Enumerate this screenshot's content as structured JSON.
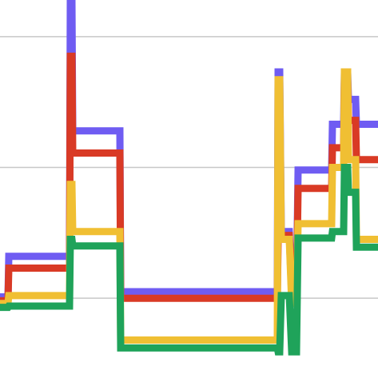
{
  "chart_data": {
    "type": "line",
    "x": [
      0,
      10,
      11,
      87,
      88,
      90,
      91,
      150,
      151,
      347,
      348,
      350,
      352,
      362,
      365,
      371,
      373,
      415,
      416,
      430,
      431,
      435,
      436,
      445,
      446,
      473
    ],
    "xlim": [
      0,
      473
    ],
    "ylim": [
      -0.61,
      2.28
    ],
    "yticks": [
      0,
      1,
      2
    ],
    "grid": true,
    "series": [
      {
        "color": "#6f5cf2",
        "values": [
          0.01,
          0.01,
          0.32,
          0.32,
          2.28,
          2.28,
          1.28,
          1.28,
          0.05,
          0.05,
          1.73,
          1.73,
          0.51,
          0.51,
          0.08,
          0.08,
          0.98,
          0.98,
          1.33,
          1.33,
          1.73,
          1.73,
          1.52,
          1.52,
          1.33,
          1.33
        ]
      },
      {
        "color": "#d93a25",
        "values": [
          -0.02,
          -0.02,
          0.23,
          0.23,
          1.85,
          1.85,
          1.11,
          1.11,
          0,
          0,
          0.45,
          0.45,
          0.48,
          0.48,
          0.02,
          0.02,
          0.84,
          0.84,
          1.15,
          1.15,
          1.67,
          1.67,
          1.36,
          1.36,
          1.06,
          1.06
        ]
      },
      {
        "color": "#f0bf33",
        "values": [
          -0.04,
          -0.04,
          0.02,
          0.02,
          0.87,
          0.87,
          0.51,
          0.51,
          -0.32,
          -0.32,
          1.67,
          1.67,
          0.45,
          0.45,
          -0.04,
          -0.04,
          0.57,
          0.57,
          1.0,
          1.0,
          1.73,
          1.73,
          1.06,
          1.06,
          0.45,
          0.45
        ]
      },
      {
        "color": "#1fa35a",
        "values": [
          -0.07,
          -0.07,
          -0.06,
          -0.06,
          0.45,
          0.45,
          0.4,
          0.4,
          -0.38,
          -0.38,
          -0.41,
          -0.41,
          0.02,
          0.02,
          -0.41,
          -0.41,
          0.46,
          0.46,
          0.51,
          0.51,
          1.0,
          1.0,
          0.81,
          0.81,
          0.39,
          0.39
        ]
      }
    ]
  }
}
